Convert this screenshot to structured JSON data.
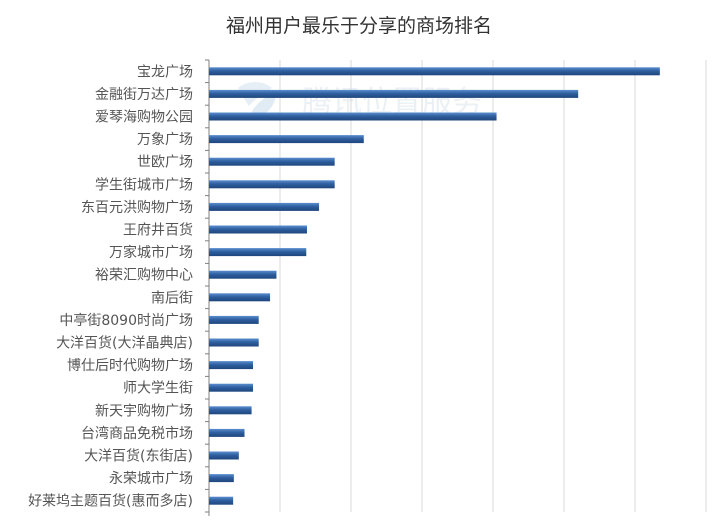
{
  "chart_data": {
    "type": "bar",
    "orientation": "horizontal",
    "title": "福州用户最乐于分享的商场排名",
    "xlabel": "",
    "ylabel": "",
    "grid": true,
    "legend": "none",
    "xlim": [
      0,
      7
    ],
    "bar_color": "#2f5f9f",
    "categories": [
      "宝龙广场",
      "金融街万达广场",
      "爱琴海购物公园",
      "万象广场",
      "世欧广场",
      "学生街城市广场",
      "东百元洪购物广场",
      "王府井百货",
      "万家城市广场",
      "裕荣汇购物中心",
      "南后街",
      "中亭街8090时尚广场",
      "大洋百货(大洋晶典店)",
      "博仕后时代购物广场",
      "师大学生街",
      "新天宇购物广场",
      "台湾商品免税市场",
      "大洋百货(东街店)",
      "永荣城市广场",
      "好莱坞主题百货(惠而多店)"
    ],
    "values": [
      6.35,
      5.2,
      4.05,
      2.18,
      1.77,
      1.77,
      1.55,
      1.38,
      1.37,
      0.95,
      0.86,
      0.7,
      0.7,
      0.62,
      0.62,
      0.6,
      0.5,
      0.42,
      0.35,
      0.34
    ]
  },
  "watermark": {
    "text": "腾讯位置服务",
    "icon": "tencent-location-logo",
    "color": "#e9eff5"
  }
}
